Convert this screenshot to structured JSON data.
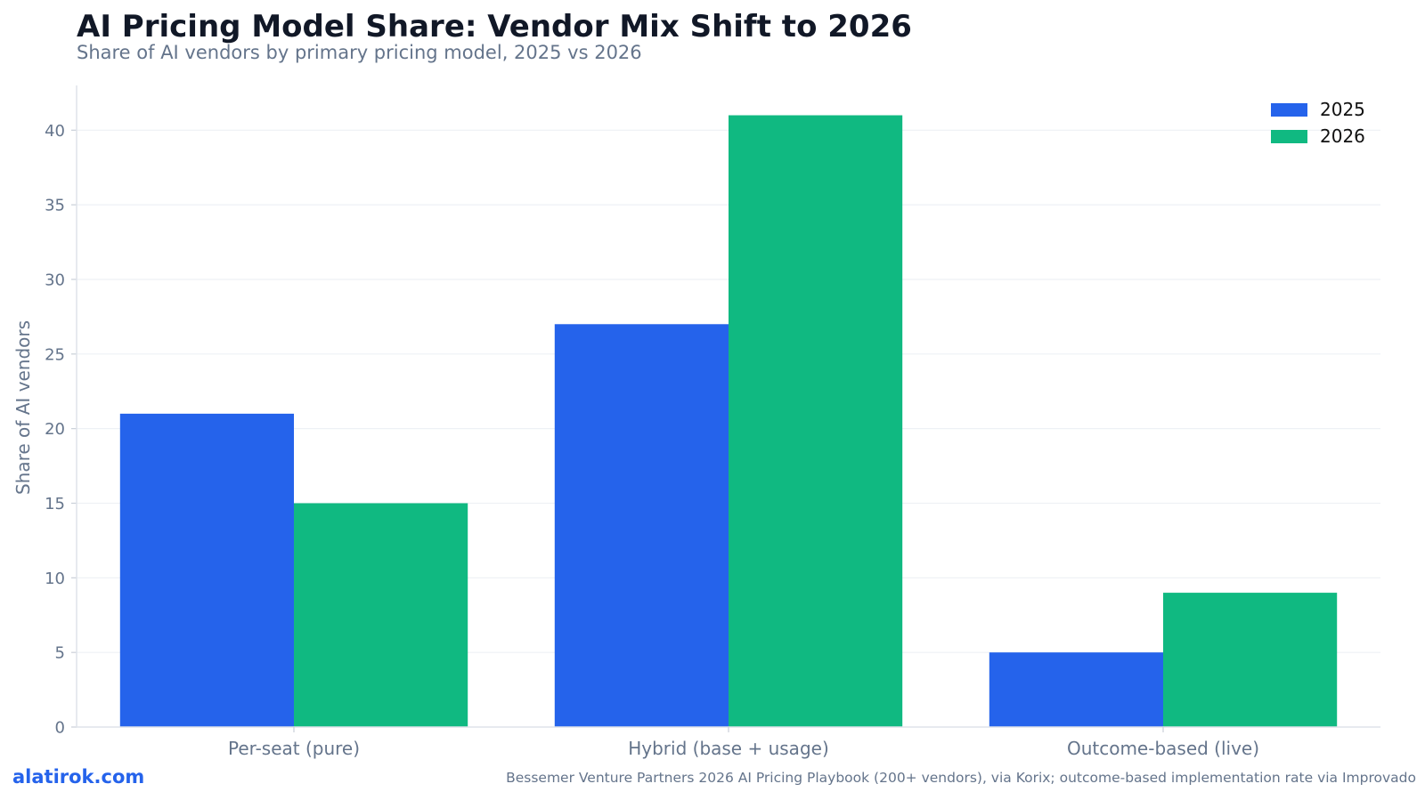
{
  "title": "AI Pricing Model Share: Vendor Mix Shift to 2026",
  "subtitle": "Share of AI vendors by primary pricing model, 2025 vs 2026",
  "brand": "alatirok.com",
  "source": "Bessemer Venture Partners 2026 AI Pricing Playbook (200+ vendors), via Korix; outcome-based implementation rate via Improvado",
  "colors": {
    "series_2025": "#2563eb",
    "series_2026": "#10b981"
  },
  "chart_data": {
    "type": "bar",
    "title": "AI Pricing Model Share: Vendor Mix Shift to 2026",
    "subtitle": "Share of AI vendors by primary pricing model, 2025 vs 2026",
    "xlabel": "",
    "ylabel": "Share of AI vendors",
    "categories": [
      "Per-seat (pure)",
      "Hybrid (base + usage)",
      "Outcome-based (live)"
    ],
    "series": [
      {
        "name": "2025",
        "values": [
          21,
          27,
          5
        ],
        "color": "#2563eb"
      },
      {
        "name": "2026",
        "values": [
          15,
          41,
          9
        ],
        "color": "#10b981"
      }
    ],
    "ylim": [
      0,
      43
    ],
    "yticks": [
      0,
      5,
      10,
      15,
      20,
      25,
      30,
      35,
      40
    ],
    "grid": true,
    "legend": "top-right"
  }
}
